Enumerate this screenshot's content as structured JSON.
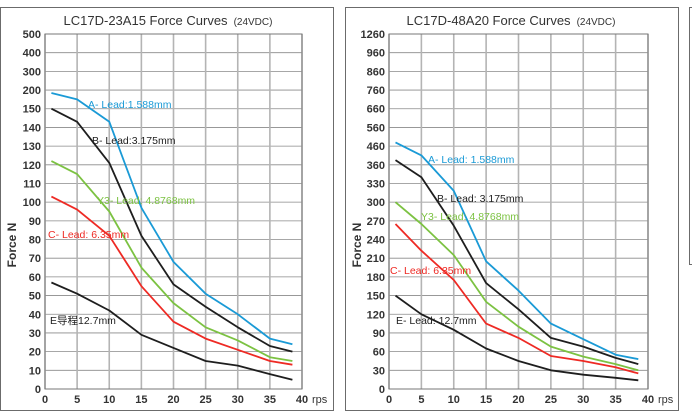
{
  "chart_data": [
    {
      "type": "line",
      "title": "LC17D-23A15  Force Curves",
      "subtitle": "(24VDC)",
      "ylabel": "Force  N",
      "xlabel": "rps",
      "x_ticks": [
        0,
        5,
        10,
        15,
        20,
        25,
        30,
        35,
        40
      ],
      "y_ticks": [
        0,
        10,
        20,
        30,
        40,
        50,
        60,
        70,
        80,
        90,
        100,
        110,
        120,
        130,
        140,
        150,
        200,
        300,
        400,
        500
      ],
      "y_scale": "non-uniform (equally spaced tick labels)",
      "grid": true,
      "x": [
        1,
        5,
        10,
        15,
        20,
        25,
        30,
        35,
        38.5
      ],
      "series": [
        {
          "name": "A- Lead:1.588mm",
          "color": "#1a9ad6",
          "values": [
            192,
            175,
            143,
            97,
            68,
            51,
            40,
            27,
            24
          ]
        },
        {
          "name": "B- Lead:3.175mm",
          "color": "#1e1e1e",
          "values": [
            150,
            143,
            121,
            82,
            56,
            44,
            33,
            23,
            20
          ]
        },
        {
          "name": "Y3- Lead: 4.8768mm",
          "color": "#7cc242",
          "values": [
            122,
            115,
            95,
            65,
            46,
            33,
            26,
            17,
            15
          ]
        },
        {
          "name": "C- Lead: 6.35mm",
          "color": "#ee2a24",
          "values": [
            103,
            96,
            82,
            55,
            36,
            27,
            21,
            15,
            13
          ]
        },
        {
          "name": "E导程12.7mm",
          "color": "#1e1e1e",
          "values": [
            57,
            51,
            42,
            29,
            22,
            15,
            12.5,
            8,
            5
          ]
        }
      ]
    },
    {
      "type": "line",
      "title": "LC17D-48A20  Force Curves",
      "subtitle": "(24VDC)",
      "ylabel": "Force  N",
      "xlabel": "rps",
      "x_ticks": [
        0,
        5,
        10,
        15,
        20,
        25,
        30,
        35,
        40
      ],
      "y_ticks": [
        0,
        30,
        60,
        90,
        120,
        150,
        180,
        210,
        240,
        270,
        300,
        330,
        360,
        460,
        560,
        660,
        760,
        860,
        960,
        1260
      ],
      "y_scale": "non-uniform (equally spaced tick labels)",
      "grid": true,
      "x": [
        1,
        5,
        10,
        15,
        20,
        25,
        30,
        35,
        38.5
      ],
      "series": [
        {
          "name": "A- Lead: 1.588mm",
          "color": "#1a9ad6",
          "values": [
            480,
            410,
            318,
            205,
            158,
            105,
            80,
            55,
            48
          ]
        },
        {
          "name": "B- Lead: 3.175mm",
          "color": "#1e1e1e",
          "values": [
            385,
            340,
            262,
            170,
            128,
            82,
            68,
            50,
            40
          ]
        },
        {
          "name": "Y3- Lead: 4.8768mm",
          "color": "#7cc242",
          "values": [
            300,
            265,
            215,
            140,
            100,
            68,
            52,
            40,
            30
          ]
        },
        {
          "name": "C- Lead: 6.35mm",
          "color": "#ee2a24",
          "values": [
            265,
            222,
            175,
            105,
            82,
            53,
            45,
            35,
            25
          ]
        },
        {
          "name": "E- Lead: 12.7mm",
          "color": "#1e1e1e",
          "values": [
            150,
            120,
            95,
            65,
            45,
            30,
            23,
            18,
            14
          ]
        }
      ]
    }
  ]
}
